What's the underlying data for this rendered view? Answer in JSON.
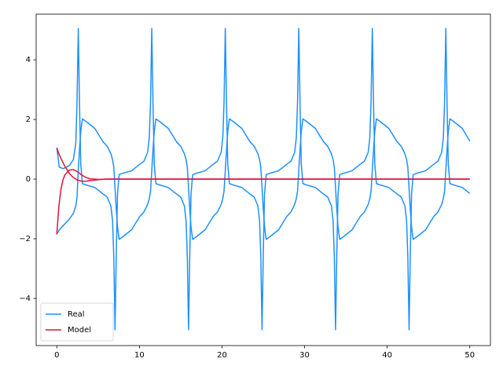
{
  "chart_data": {
    "type": "line",
    "xlim": [
      -2.5,
      52.5
    ],
    "ylim": [
      -5.58,
      5.53
    ],
    "xticks": [
      0,
      10,
      20,
      30,
      40,
      50
    ],
    "yticks": [
      {
        "value": -4,
        "label": "−4"
      },
      {
        "value": -2,
        "label": "−2"
      },
      0,
      2,
      4
    ],
    "legend": "lower left",
    "series": [
      {
        "name": "Real",
        "color": "#1e90ff",
        "x": [
          0,
          0.3,
          0.8,
          1.5,
          2.0,
          2.3,
          2.45,
          2.6,
          2.75,
          2.9,
          3.1,
          3.6,
          4.6,
          5.6,
          6.1,
          6.55,
          6.75,
          6.9,
          7.05,
          7.2,
          7.35,
          7.55,
          8.05,
          9.05,
          10.05,
          10.55,
          11,
          11.2,
          11.35,
          11.5,
          11.65,
          11.8,
          12,
          12.5,
          13.5,
          14.5,
          15,
          15.45,
          15.65,
          15.8,
          15.95,
          16.1,
          16.25,
          16.45,
          16.95,
          17.95,
          18.95,
          19.45,
          19.9,
          20.1,
          20.25,
          20.4,
          20.55,
          20.7,
          20.9,
          21.4,
          22.4,
          23.4,
          23.9,
          24.35,
          24.55,
          24.7,
          24.85,
          25,
          25.15,
          25.35,
          25.85,
          26.85,
          27.85,
          28.35,
          28.8,
          29,
          29.15,
          29.3,
          29.45,
          29.6,
          29.8,
          30.3,
          31.3,
          32.3,
          32.8,
          33.25,
          33.45,
          33.6,
          33.75,
          33.9,
          34.05,
          34.25,
          34.75,
          35.75,
          36.75,
          37.25,
          37.7,
          37.9,
          38.05,
          38.2,
          38.35,
          38.5,
          38.7,
          39.2,
          40.2,
          41.2,
          41.7,
          42.15,
          42.35,
          42.5,
          42.65,
          42.8,
          42.95,
          43.15,
          43.65,
          44.65,
          45.65,
          46.15,
          46.6,
          46.8,
          46.95,
          47.1,
          47.25,
          47.4,
          47.6,
          48.1,
          49.1,
          50
        ],
        "lines": [
          [
            1.05,
            0.4,
            0.35,
            0.45,
            0.65,
            1.2,
            2.6,
            5.05,
            2.5,
            0.5,
            -0.15,
            -0.2,
            -0.28,
            -0.5,
            -0.6,
            -0.9,
            -1.4,
            -2.6,
            -5.05,
            -2.5,
            -0.5,
            0.15,
            0.2,
            0.28,
            0.5,
            0.6,
            0.9,
            1.4,
            2.6,
            5.05,
            2.5,
            0.5,
            -0.15,
            -0.2,
            -0.28,
            -0.5,
            -0.6,
            -0.9,
            -1.4,
            -2.6,
            -5.05,
            -2.5,
            -0.5,
            0.15,
            0.2,
            0.28,
            0.5,
            0.6,
            0.9,
            1.4,
            2.6,
            5.05,
            2.5,
            0.5,
            -0.15,
            -0.2,
            -0.28,
            -0.5,
            -0.6,
            -0.9,
            -1.4,
            -2.6,
            -5.05,
            -2.5,
            -0.5,
            0.15,
            0.2,
            0.28,
            0.5,
            0.6,
            0.9,
            1.4,
            2.6,
            5.05,
            2.5,
            0.5,
            -0.15,
            -0.2,
            -0.28,
            -0.5,
            -0.6,
            -0.9,
            -1.4,
            -2.6,
            -5.05,
            -2.5,
            -0.5,
            0.15,
            0.2,
            0.28,
            0.5,
            0.6,
            0.9,
            1.4,
            2.6,
            5.05,
            2.5,
            0.5,
            -0.15,
            -0.2,
            -0.28,
            -0.5,
            -0.6,
            -0.9,
            -1.4,
            -2.6,
            -5.05,
            -2.5,
            -0.5,
            0.15,
            0.2,
            0.28,
            0.5,
            0.6,
            0.9,
            1.4,
            2.6,
            5.05,
            2.5,
            0.5,
            -0.15,
            -0.2,
            -0.28,
            -0.48
          ],
          [
            -1.85,
            -1.7,
            -1.55,
            -1.35,
            -1.15,
            -0.9,
            -0.6,
            0.3,
            1.0,
            1.6,
            2.02,
            1.92,
            1.7,
            1.25,
            1.1,
            0.85,
            0.65,
            0.4,
            -0.3,
            -1.0,
            -1.6,
            -2.02,
            -1.92,
            -1.7,
            -1.25,
            -1.1,
            -0.85,
            -0.65,
            -0.4,
            0.3,
            1.0,
            1.6,
            2.02,
            1.92,
            1.7,
            1.25,
            1.1,
            0.85,
            0.65,
            0.4,
            -0.3,
            -1.0,
            -1.6,
            -2.02,
            -1.92,
            -1.7,
            -1.25,
            -1.1,
            -0.85,
            -0.65,
            -0.4,
            0.3,
            1.0,
            1.6,
            2.02,
            1.92,
            1.7,
            1.25,
            1.1,
            0.85,
            0.65,
            0.4,
            -0.3,
            -1.0,
            -1.6,
            -2.02,
            -1.92,
            -1.7,
            -1.25,
            -1.1,
            -0.85,
            -0.65,
            -0.4,
            0.3,
            1.0,
            1.6,
            2.02,
            1.92,
            1.7,
            1.25,
            1.1,
            0.85,
            0.65,
            0.4,
            -0.3,
            -1.0,
            -1.6,
            -2.02,
            -1.92,
            -1.7,
            -1.25,
            -1.1,
            -0.85,
            -0.65,
            -0.4,
            0.3,
            1.0,
            1.6,
            2.02,
            1.92,
            1.7,
            1.25,
            1.1,
            0.85,
            0.65,
            0.4,
            -0.3,
            -1.0,
            -1.6,
            -2.02,
            -1.92,
            -1.7,
            -1.25,
            -1.1,
            -0.85,
            -0.65,
            -0.4,
            0.3,
            1.0,
            1.6,
            2.02,
            1.92,
            1.7,
            1.27
          ]
        ]
      },
      {
        "name": "Model",
        "color": "#dc143c",
        "x": [
          0,
          0.25,
          0.5,
          0.75,
          1,
          1.5,
          2,
          2.5,
          3,
          3.5,
          4,
          5,
          6,
          50
        ],
        "lines": [
          [
            1.05,
            0.85,
            0.7,
            0.55,
            0.42,
            0.2,
            0.05,
            -0.03,
            -0.07,
            -0.07,
            -0.05,
            -0.02,
            0,
            0
          ],
          [
            -1.85,
            -0.9,
            -0.35,
            -0.02,
            0.15,
            0.3,
            0.32,
            0.25,
            0.14,
            0.06,
            0.01,
            -0.01,
            0,
            0
          ]
        ]
      }
    ]
  }
}
